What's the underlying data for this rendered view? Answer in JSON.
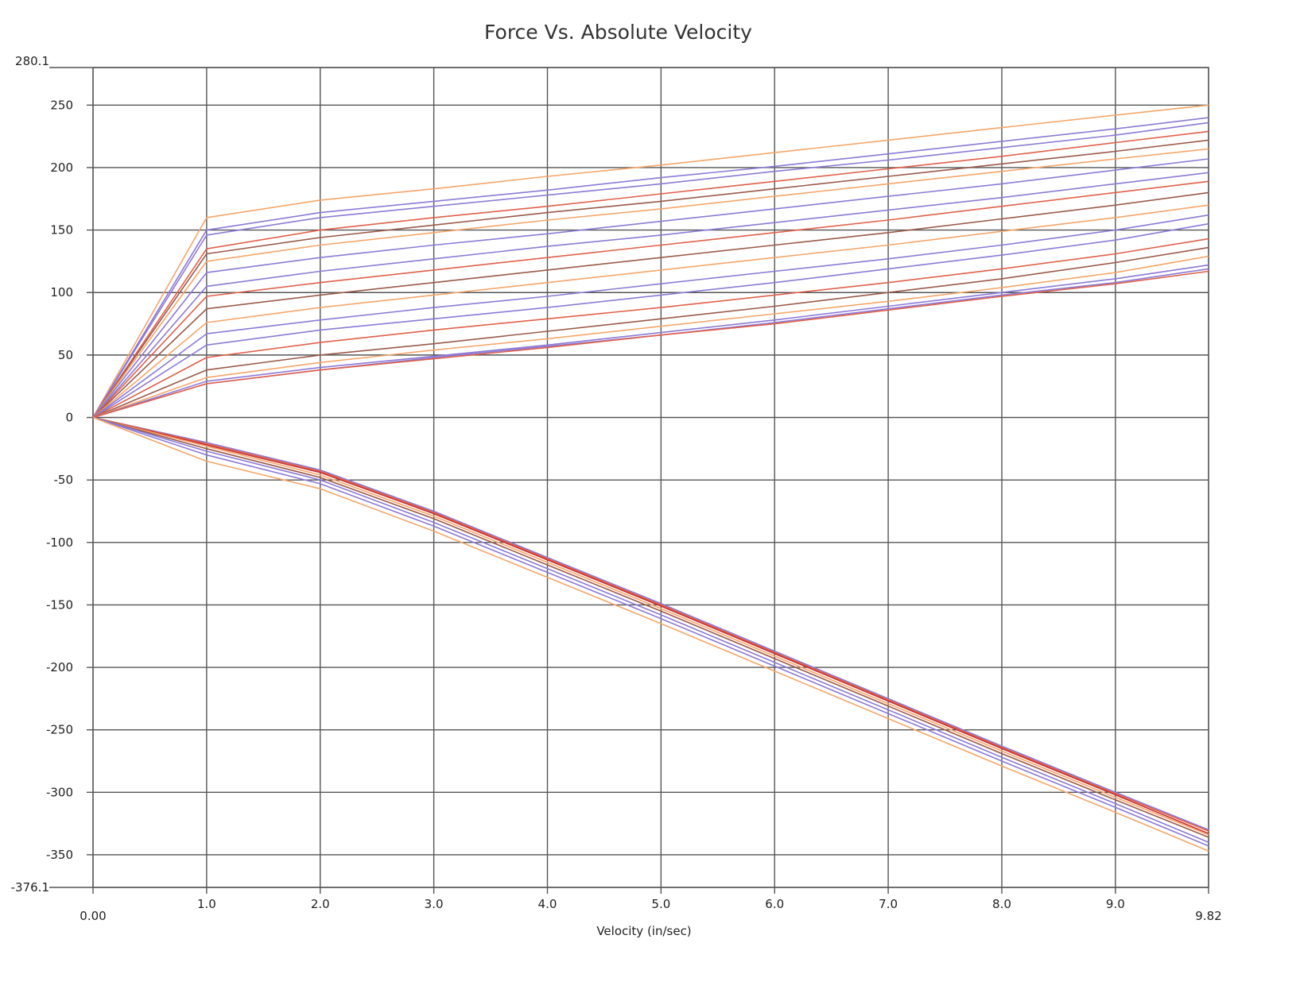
{
  "chart_data": {
    "type": "line",
    "title": "Force Vs. Absolute Velocity",
    "xlabel": "Velocity (in/sec)",
    "ylabel": "",
    "xlim": [
      0,
      9.82
    ],
    "ylim": [
      -376.1,
      280.1
    ],
    "x_ticks": [
      {
        "v": 0,
        "label": "0.00"
      },
      {
        "v": 1,
        "label": "1.0"
      },
      {
        "v": 2,
        "label": "2.0"
      },
      {
        "v": 3,
        "label": "3.0"
      },
      {
        "v": 4,
        "label": "4.0"
      },
      {
        "v": 5,
        "label": "5.0"
      },
      {
        "v": 6,
        "label": "6.0"
      },
      {
        "v": 7,
        "label": "7.0"
      },
      {
        "v": 8,
        "label": "8.0"
      },
      {
        "v": 9,
        "label": "9.0"
      },
      {
        "v": 9.82,
        "label": "9.82"
      }
    ],
    "y_ticks": [
      {
        "v": 280.1,
        "label": "280.1"
      },
      {
        "v": 250,
        "label": "250"
      },
      {
        "v": 200,
        "label": "200"
      },
      {
        "v": 150,
        "label": "150"
      },
      {
        "v": 100,
        "label": "100"
      },
      {
        "v": 50,
        "label": "50"
      },
      {
        "v": 0,
        "label": "0"
      },
      {
        "v": -50,
        "label": "-50"
      },
      {
        "v": -100,
        "label": "-100"
      },
      {
        "v": -150,
        "label": "-150"
      },
      {
        "v": -200,
        "label": "-200"
      },
      {
        "v": -250,
        "label": "-250"
      },
      {
        "v": -300,
        "label": "-300"
      },
      {
        "v": -350,
        "label": "-350"
      },
      {
        "v": -376.1,
        "label": "-376.1"
      }
    ],
    "grid": true,
    "legend": "none",
    "colors": {
      "orange": "#f5a66a",
      "purple": "#8c7ad6",
      "red": "#e0604a",
      "brown": "#9a5a4a",
      "crimson": "#c83030",
      "grid": "#555555"
    },
    "x": [
      0,
      1,
      2,
      3,
      4,
      5,
      6,
      7,
      8,
      9,
      9.82
    ],
    "series": [
      {
        "color": "orange",
        "values": [
          0,
          160,
          174,
          183,
          193,
          202,
          212,
          222,
          232,
          242,
          250
        ]
      },
      {
        "color": "purple",
        "values": [
          0,
          150,
          164,
          173,
          182,
          192,
          201,
          211,
          221,
          231,
          240
        ]
      },
      {
        "color": "purple",
        "values": [
          0,
          146,
          160,
          169,
          178,
          187,
          197,
          206,
          216,
          226,
          236
        ]
      },
      {
        "color": "red",
        "values": [
          0,
          135,
          150,
          160,
          169,
          179,
          189,
          199,
          209,
          220,
          229
        ]
      },
      {
        "color": "brown",
        "values": [
          0,
          131,
          144,
          154,
          164,
          173,
          183,
          193,
          203,
          213,
          222
        ]
      },
      {
        "color": "orange",
        "values": [
          0,
          125,
          138,
          148,
          158,
          167,
          177,
          187,
          197,
          207,
          215
        ]
      },
      {
        "color": "purple",
        "values": [
          0,
          116,
          128,
          138,
          147,
          157,
          167,
          177,
          187,
          198,
          207
        ]
      },
      {
        "color": "purple",
        "values": [
          0,
          105,
          117,
          127,
          137,
          146,
          156,
          166,
          176,
          187,
          196
        ]
      },
      {
        "color": "red",
        "values": [
          0,
          97,
          108,
          118,
          128,
          138,
          148,
          158,
          169,
          180,
          189
        ]
      },
      {
        "color": "brown",
        "values": [
          0,
          87,
          98,
          108,
          118,
          128,
          138,
          148,
          159,
          170,
          180
        ]
      },
      {
        "color": "orange",
        "values": [
          0,
          76,
          88,
          98,
          108,
          118,
          128,
          138,
          149,
          160,
          170
        ]
      },
      {
        "color": "purple",
        "values": [
          0,
          67,
          78,
          88,
          97,
          107,
          117,
          127,
          138,
          150,
          162
        ]
      },
      {
        "color": "purple",
        "values": [
          0,
          58,
          70,
          79,
          88,
          98,
          108,
          119,
          130,
          142,
          155
        ]
      },
      {
        "color": "red",
        "values": [
          0,
          48,
          60,
          70,
          79,
          88,
          98,
          108,
          119,
          131,
          143
        ]
      },
      {
        "color": "brown",
        "values": [
          0,
          38,
          50,
          59,
          69,
          79,
          89,
          100,
          111,
          124,
          136
        ]
      },
      {
        "color": "orange",
        "values": [
          0,
          32,
          44,
          54,
          63,
          73,
          83,
          93,
          104,
          116,
          129
        ]
      },
      {
        "color": "purple",
        "values": [
          0,
          29,
          40,
          49,
          58,
          68,
          78,
          89,
          100,
          111,
          122
        ]
      },
      {
        "color": "purple",
        "values": [
          0,
          27,
          38,
          48,
          57,
          66,
          76,
          87,
          98,
          108,
          119
        ]
      },
      {
        "color": "red",
        "values": [
          0,
          27,
          38,
          47,
          56,
          66,
          75,
          86,
          97,
          107,
          117
        ]
      },
      {
        "color": "purple",
        "values": [
          0,
          -20,
          -42,
          -75,
          -112,
          -149,
          -187,
          -225,
          -263,
          -300,
          -330
        ]
      },
      {
        "color": "red",
        "values": [
          0,
          -21,
          -43,
          -76,
          -113,
          -150,
          -188,
          -226,
          -264,
          -301,
          -331
        ]
      },
      {
        "color": "crimson",
        "values": [
          0,
          -22,
          -44,
          -77,
          -114,
          -151,
          -189,
          -227,
          -265,
          -302,
          -333
        ]
      },
      {
        "color": "orange",
        "values": [
          0,
          -23,
          -46,
          -79,
          -116,
          -153,
          -191,
          -229,
          -267,
          -304,
          -334
        ]
      },
      {
        "color": "brown",
        "values": [
          0,
          -25,
          -48,
          -81,
          -118,
          -155,
          -193,
          -231,
          -269,
          -306,
          -336
        ]
      },
      {
        "color": "purple",
        "values": [
          0,
          -27,
          -50,
          -84,
          -121,
          -158,
          -196,
          -234,
          -272,
          -309,
          -340
        ]
      },
      {
        "color": "purple",
        "values": [
          0,
          -30,
          -53,
          -87,
          -124,
          -161,
          -199,
          -237,
          -275,
          -312,
          -343
        ]
      },
      {
        "color": "orange",
        "values": [
          0,
          -35,
          -57,
          -91,
          -128,
          -165,
          -203,
          -241,
          -279,
          -316,
          -347
        ]
      }
    ]
  }
}
